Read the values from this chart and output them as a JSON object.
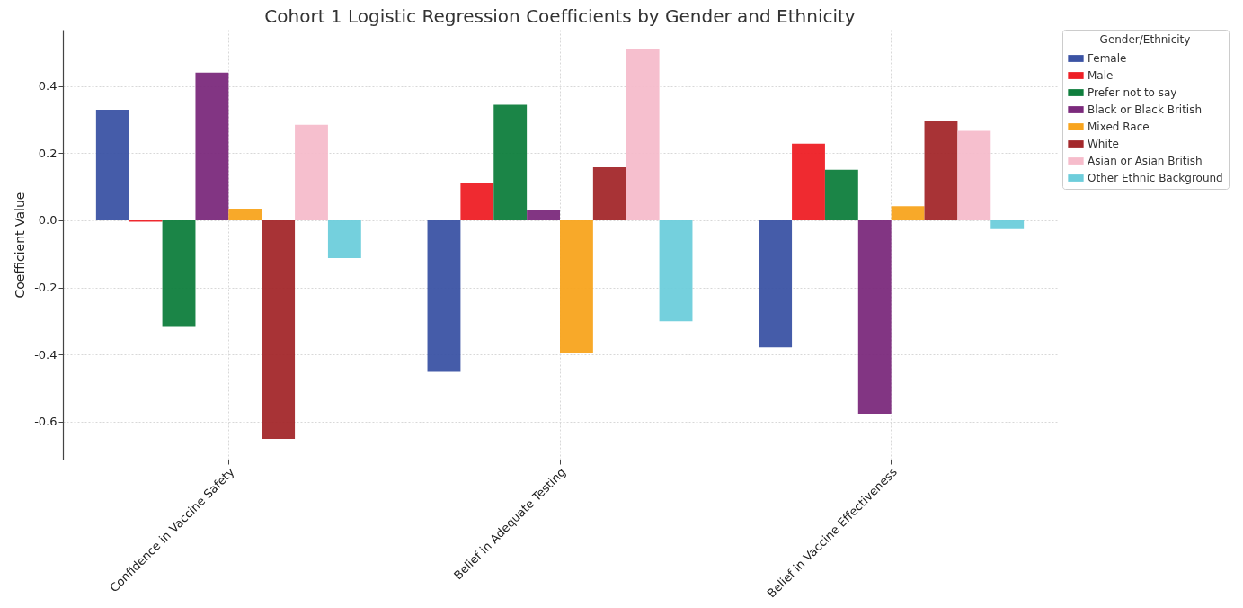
{
  "chart_data": {
    "type": "bar",
    "title": "Cohort 1 Logistic Regression Coefficients by Gender and Ethnicity",
    "ylabel": "Coefficient Value",
    "legend_title": "Gender/Ethnicity",
    "categories": [
      "Confidence in Vaccine Safety",
      "Belief in Adequate Testing",
      "Belief in Vaccine Effectiveness"
    ],
    "series": [
      {
        "name": "Female",
        "color": "#3b53a4",
        "values": [
          0.33,
          -0.452,
          -0.379
        ]
      },
      {
        "name": "Male",
        "color": "#ee1f25",
        "values": [
          -0.004,
          0.11,
          0.229
        ]
      },
      {
        "name": "Prefer not to say",
        "color": "#0f7e3d",
        "values": [
          -0.318,
          0.345,
          0.151
        ]
      },
      {
        "name": "Black or Black British",
        "color": "#7b2a7c",
        "values": [
          0.441,
          0.032,
          -0.577
        ]
      },
      {
        "name": "Mixed Race",
        "color": "#f8a41e",
        "values": [
          0.035,
          -0.396,
          0.042
        ]
      },
      {
        "name": "White",
        "color": "#a3282b",
        "values": [
          -0.652,
          0.158,
          0.295
        ]
      },
      {
        "name": "Asian or Asian British",
        "color": "#f6bccb",
        "values": [
          0.285,
          0.51,
          0.267
        ]
      },
      {
        "name": "Other Ethnic Background",
        "color": "#6dcddb",
        "values": [
          -0.113,
          -0.301,
          -0.026
        ]
      }
    ],
    "ylim": [
      -0.714,
      0.569
    ],
    "yticks": [
      {
        "value": -0.6,
        "label": "-0.6"
      },
      {
        "value": -0.4,
        "label": "-0.4"
      },
      {
        "value": -0.2,
        "label": "-0.2"
      },
      {
        "value": 0,
        "label": "0.0"
      },
      0.2,
      0.4
    ],
    "grid": true,
    "legend": "top right"
  }
}
